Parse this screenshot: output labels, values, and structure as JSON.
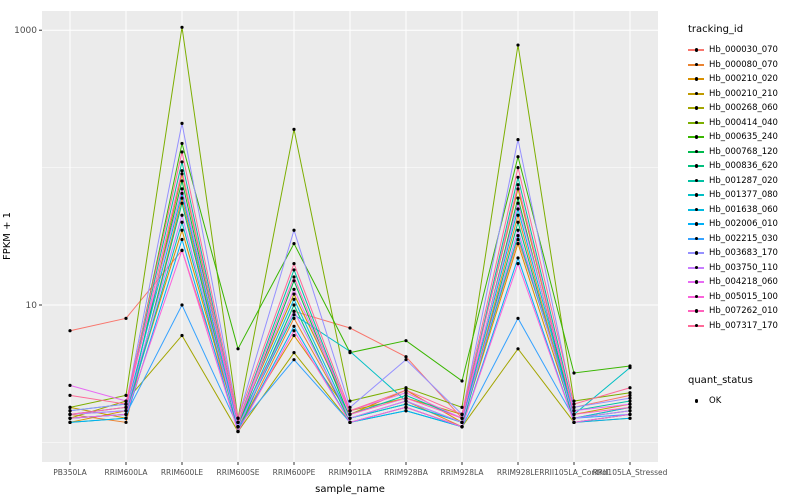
{
  "chart_data": {
    "type": "line",
    "title": "",
    "xlabel": "sample_name",
    "ylabel": "FPKM + 1",
    "y_scale": "log10",
    "ylim": [
      0.72,
      1380
    ],
    "y_ticks": [
      {
        "value": 10,
        "label": "10"
      },
      {
        "value": 1000,
        "label": "1000"
      }
    ],
    "y_minor": [
      1,
      100
    ],
    "panel_bg": "#EBEBEB",
    "grid_color": "#FFFFFF",
    "tick_label_color": "#4D4D4D",
    "point_color": "#000000",
    "categories": [
      "PB350LA",
      "RRIM600LA",
      "RRIM600LE",
      "RRIM600SE",
      "RRIM600PE",
      "RRIM901LA",
      "RRIM928BA",
      "RRIM928LA",
      "RRIM928LE",
      "RRII105LA_Control",
      "RRII105LA_Stressed"
    ],
    "series": [
      {
        "name": "Hb_000030_070",
        "color": "#F8766D",
        "values": [
          6.5,
          8.0,
          25,
          1.4,
          9,
          6.8,
          4.2,
          1.5,
          30,
          1.8,
          2.2
        ]
      },
      {
        "name": "Hb_000080_070",
        "color": "#EA8331",
        "values": [
          1.6,
          1.4,
          60,
          1.2,
          8,
          1.5,
          2.0,
          1.3,
          45,
          1.4,
          1.6
        ]
      },
      {
        "name": "Hb_000210_020",
        "color": "#D89000",
        "values": [
          1.4,
          1.7,
          35,
          1.3,
          6,
          1.6,
          2.4,
          1.4,
          28,
          1.5,
          1.8
        ]
      },
      {
        "name": "Hb_000210_210",
        "color": "#C09B00",
        "values": [
          1.8,
          1.5,
          90,
          1.4,
          12,
          1.7,
          2.1,
          1.6,
          70,
          1.6,
          1.9
        ]
      },
      {
        "name": "Hb_000268_060",
        "color": "#A3A500",
        "values": [
          1.5,
          2.0,
          6,
          1.2,
          4.5,
          1.4,
          1.8,
          1.3,
          4.8,
          1.4,
          1.5
        ]
      },
      {
        "name": "Hb_000414_040",
        "color": "#7CAE00",
        "values": [
          1.8,
          2.2,
          1050,
          1.5,
          190,
          2.0,
          2.5,
          1.8,
          780,
          2.0,
          2.3
        ]
      },
      {
        "name": "Hb_000635_240",
        "color": "#39B600",
        "values": [
          1.6,
          1.8,
          150,
          4.8,
          28,
          4.5,
          5.5,
          2.8,
          120,
          3.2,
          3.6
        ]
      },
      {
        "name": "Hb_000768_120",
        "color": "#00BB4E",
        "values": [
          1.5,
          1.6,
          80,
          1.3,
          15,
          1.5,
          1.9,
          1.4,
          60,
          1.5,
          1.7
        ]
      },
      {
        "name": "Hb_000836_620",
        "color": "#00BF7D",
        "values": [
          1.4,
          1.5,
          55,
          1.2,
          10,
          1.4,
          1.7,
          1.3,
          40,
          1.4,
          1.6
        ]
      },
      {
        "name": "Hb_001287_020",
        "color": "#00C1A3",
        "values": [
          1.7,
          1.9,
          110,
          1.4,
          18,
          1.6,
          2.2,
          1.5,
          85,
          1.7,
          2.0
        ]
      },
      {
        "name": "Hb_001377_080",
        "color": "#00BFC4",
        "values": [
          1.5,
          1.6,
          40,
          1.3,
          8.5,
          4.6,
          2.0,
          1.4,
          32,
          1.6,
          3.5
        ]
      },
      {
        "name": "Hb_001638_060",
        "color": "#00BAE0",
        "values": [
          1.6,
          1.7,
          65,
          1.3,
          11,
          1.5,
          1.9,
          1.4,
          50,
          1.5,
          1.8
        ]
      },
      {
        "name": "Hb_002006_010",
        "color": "#00B0F6",
        "values": [
          1.4,
          1.5,
          30,
          1.2,
          7,
          1.4,
          1.7,
          1.3,
          22,
          1.4,
          1.5
        ]
      },
      {
        "name": "Hb_002215_030",
        "color": "#35A2FF",
        "values": [
          1.5,
          1.6,
          10,
          1.3,
          4,
          1.4,
          1.8,
          1.3,
          8,
          1.5,
          1.6
        ]
      },
      {
        "name": "Hb_003683_170",
        "color": "#9590FF",
        "values": [
          1.7,
          1.9,
          210,
          1.5,
          35,
          1.8,
          4.0,
          1.6,
          160,
          1.8,
          2.1
        ]
      },
      {
        "name": "Hb_003750_110",
        "color": "#C77CFF",
        "values": [
          1.6,
          1.7,
          45,
          1.3,
          9,
          1.5,
          2.0,
          1.4,
          35,
          1.5,
          1.7
        ]
      },
      {
        "name": "Hb_004218_060",
        "color": "#E76BF3",
        "values": [
          2.6,
          2.0,
          70,
          1.4,
          13,
          1.7,
          2.3,
          1.5,
          55,
          1.7,
          1.9
        ]
      },
      {
        "name": "Hb_005015_100",
        "color": "#FA62DB",
        "values": [
          1.5,
          1.6,
          25,
          1.2,
          6.5,
          1.4,
          1.8,
          1.3,
          20,
          1.4,
          1.6
        ]
      },
      {
        "name": "Hb_007262_010",
        "color": "#FF62BC",
        "values": [
          1.6,
          1.8,
          95,
          1.4,
          16,
          1.6,
          2.1,
          1.5,
          75,
          1.6,
          1.8
        ]
      },
      {
        "name": "Hb_007317_170",
        "color": "#FF6A98",
        "values": [
          2.2,
          1.9,
          130,
          1.5,
          20,
          1.7,
          2.4,
          1.6,
          100,
          1.9,
          2.5
        ]
      }
    ],
    "legend": {
      "color_title": "tracking_id",
      "shape_title": "quant_status",
      "shape_items": [
        {
          "label": "OK"
        }
      ],
      "position": "right"
    },
    "grid": true
  }
}
